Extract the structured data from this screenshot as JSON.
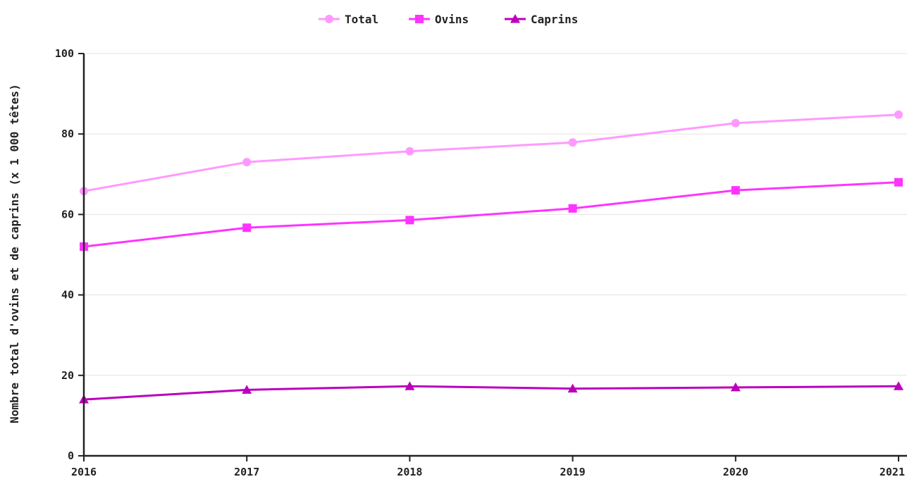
{
  "chart_data": {
    "type": "line",
    "title": "",
    "xlabel": "",
    "ylabel": "Nombre total d'ovins et de caprins (x 1 000 têtes)",
    "ylim": [
      0,
      100
    ],
    "yticks": [
      "0",
      "20",
      "40",
      "60",
      "80",
      "100"
    ],
    "categories": [
      "2016",
      "2017",
      "2018",
      "2019",
      "2020",
      "2021"
    ],
    "grid": true,
    "legend_position": "top-center",
    "series": [
      {
        "name": "Total",
        "marker": "circle",
        "color": "#ff99ff",
        "values": [
          65.8,
          73.0,
          75.7,
          77.9,
          82.7,
          84.8
        ]
      },
      {
        "name": "Ovins",
        "marker": "square",
        "color": "#ff33ff",
        "values": [
          52.0,
          56.7,
          58.6,
          61.5,
          66.0,
          68.0
        ]
      },
      {
        "name": "Caprins",
        "marker": "triangle",
        "color": "#bb00bb",
        "values": [
          14.0,
          16.4,
          17.3,
          16.7,
          17.0,
          17.3
        ]
      }
    ]
  }
}
